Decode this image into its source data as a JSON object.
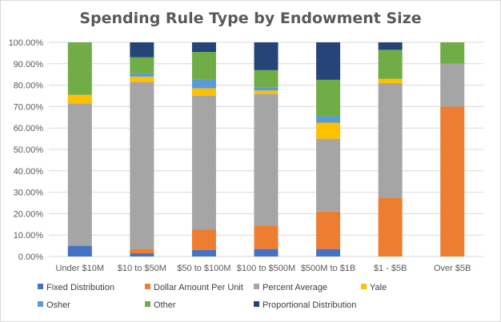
{
  "chart_data": {
    "type": "bar",
    "stacked": true,
    "title": "Spending Rule Type by Endowment Size",
    "xlabel": "",
    "ylabel": "",
    "ylim": [
      0,
      100
    ],
    "y_ticks": [
      0,
      10,
      20,
      30,
      40,
      50,
      60,
      70,
      80,
      90,
      100
    ],
    "y_tick_labels": [
      "0.00%",
      "10.00%",
      "20.00%",
      "30.00%",
      "40.00%",
      "50.00%",
      "60.00%",
      "70.00%",
      "80.00%",
      "90.00%",
      "100.00%"
    ],
    "grid": true,
    "legend_position": "bottom",
    "categories": [
      "Under $10M",
      "$10 to $50M",
      "$50 to $100M",
      "$100 to $500M",
      "$500M to $1B",
      "$1 - $5B",
      "Over $5B"
    ],
    "series": [
      {
        "name": "Fixed Distribution",
        "color": "#4472c4",
        "values": [
          5,
          1.5,
          3,
          3.5,
          3.5,
          0,
          0
        ]
      },
      {
        "name": "Dollar Amount Per Unit",
        "color": "#ed7d31",
        "values": [
          0,
          2,
          9.5,
          11,
          17.5,
          27.5,
          70
        ]
      },
      {
        "name": "Percent Average",
        "color": "#a5a5a5",
        "values": [
          66.5,
          78,
          62.5,
          61.5,
          34,
          53.5,
          20
        ]
      },
      {
        "name": "Yale",
        "color": "#ffc000",
        "values": [
          4,
          2.5,
          3.5,
          1.5,
          7.5,
          2,
          0
        ]
      },
      {
        "name": "Osher",
        "color": "#5b9bd5",
        "values": [
          0,
          1.5,
          4,
          1.5,
          3,
          0,
          0
        ]
      },
      {
        "name": "Other",
        "color": "#70ad47",
        "values": [
          24.5,
          7.5,
          13,
          8,
          17,
          13.5,
          10
        ]
      },
      {
        "name": "Proportional Distribution",
        "color": "#264478",
        "values": [
          0,
          7,
          4.5,
          13,
          17.5,
          3.5,
          0
        ]
      }
    ]
  }
}
